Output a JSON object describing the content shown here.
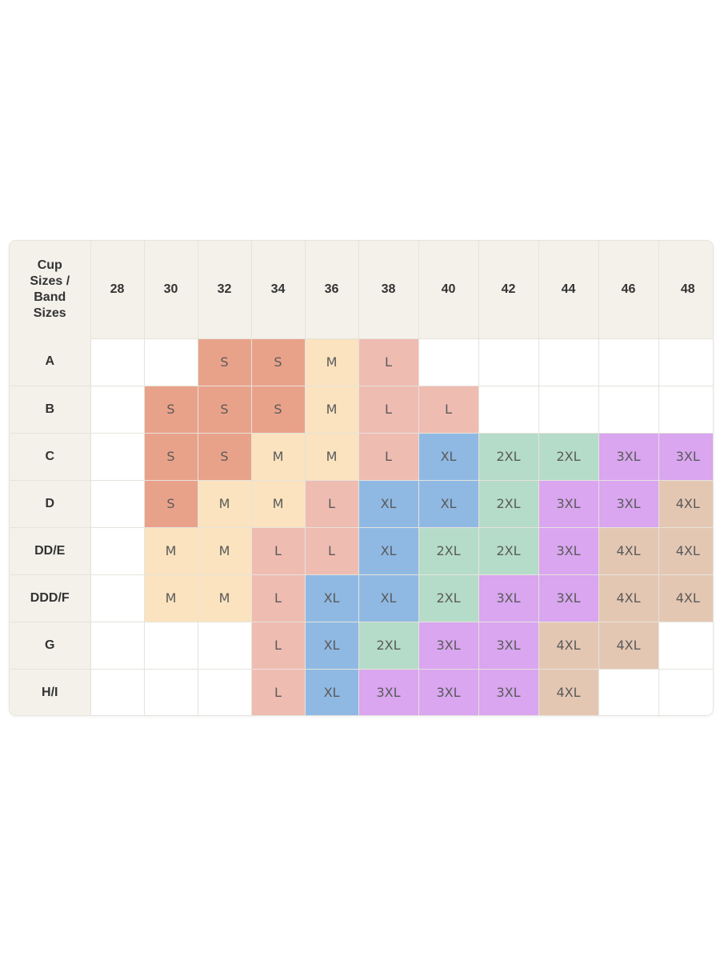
{
  "chart_data": {
    "type": "table",
    "corner_label": "Cup\nSizes /\nBand\nSizes",
    "band_sizes": [
      "28",
      "30",
      "32",
      "34",
      "36",
      "38",
      "40",
      "42",
      "44",
      "46",
      "48"
    ],
    "cup_sizes": [
      "A",
      "B",
      "C",
      "D",
      "DD/E",
      "DDD/F",
      "G",
      "H/I"
    ],
    "cells": [
      [
        "",
        "",
        "S",
        "S",
        "M",
        "L",
        "",
        "",
        "",
        "",
        ""
      ],
      [
        "",
        "S",
        "S",
        "S",
        "M",
        "L",
        "L",
        "",
        "",
        "",
        ""
      ],
      [
        "",
        "S",
        "S",
        "M",
        "M",
        "L",
        "XL",
        "2XL",
        "2XL",
        "3XL",
        "3XL"
      ],
      [
        "",
        "S",
        "M",
        "M",
        "L",
        "XL",
        "XL",
        "2XL",
        "3XL",
        "3XL",
        "4XL"
      ],
      [
        "",
        "M",
        "M",
        "L",
        "L",
        "XL",
        "2XL",
        "2XL",
        "3XL",
        "4XL",
        "4XL"
      ],
      [
        "",
        "M",
        "M",
        "L",
        "XL",
        "XL",
        "2XL",
        "3XL",
        "3XL",
        "4XL",
        "4XL"
      ],
      [
        "",
        "",
        "",
        "L",
        "XL",
        "2XL",
        "3XL",
        "3XL",
        "4XL",
        "4XL",
        ""
      ],
      [
        "",
        "",
        "",
        "L",
        "XL",
        "3XL",
        "3XL",
        "3XL",
        "4XL",
        "",
        ""
      ]
    ],
    "size_colors": {
      "S": "#e9a28a",
      "M": "#fbe3bf",
      "L": "#efbcb2",
      "XL": "#8fb9e3",
      "2XL": "#b5dcc8",
      "3XL": "#d9a6ef",
      "4XL": "#e4c7b3"
    },
    "header_color": "#f3f1ea",
    "empty_color": "#ffffff"
  }
}
